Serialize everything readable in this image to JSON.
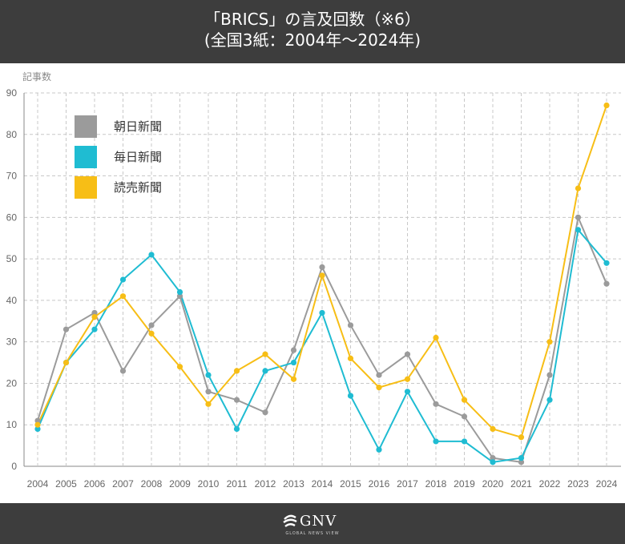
{
  "header": {
    "title_line1": "「BRICS」の言及回数（※6）",
    "title_line2": "(全国3紙：2004年〜2024年)"
  },
  "footer": {
    "logo_text": "GNV",
    "logo_tagline": "GLOBAL NEWS VIEW"
  },
  "colors": {
    "asahi": "#9b9b9b",
    "mainichi": "#1fbcd2",
    "yomiuri": "#f7be16",
    "header_bg": "#3d3d3d"
  },
  "chart_data": {
    "type": "line",
    "title": "",
    "xlabel": "",
    "ylabel": "記事数",
    "ylim": [
      0,
      90
    ],
    "yticks": [
      0,
      10,
      20,
      30,
      40,
      50,
      60,
      70,
      80,
      90
    ],
    "grid": true,
    "legend_position": "top-left",
    "x": [
      "2004",
      "2005",
      "2006",
      "2007",
      "2008",
      "2009",
      "2010",
      "2011",
      "2012",
      "2013",
      "2014",
      "2015",
      "2016",
      "2017",
      "2018",
      "2019",
      "2020",
      "2021",
      "2022",
      "2023",
      "2024"
    ],
    "series": [
      {
        "name": "朝日新聞",
        "color": "#9b9b9b",
        "values": [
          11,
          33,
          37,
          23,
          34,
          41,
          18,
          16,
          13,
          28,
          48,
          34,
          22,
          27,
          15,
          12,
          2,
          1,
          22,
          60,
          44
        ]
      },
      {
        "name": "毎日新聞",
        "color": "#1fbcd2",
        "values": [
          9,
          25,
          33,
          45,
          51,
          42,
          22,
          9,
          23,
          25,
          37,
          17,
          4,
          18,
          6,
          6,
          1,
          2,
          16,
          57,
          49
        ]
      },
      {
        "name": "読売新聞",
        "color": "#f7be16",
        "values": [
          10,
          25,
          36,
          41,
          32,
          24,
          15,
          23,
          27,
          21,
          46,
          26,
          19,
          21,
          31,
          16,
          9,
          7,
          30,
          67,
          87
        ]
      }
    ]
  }
}
